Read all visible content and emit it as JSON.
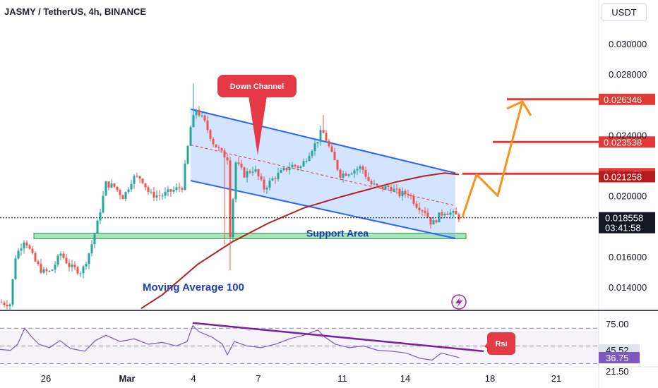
{
  "header": {
    "title": "JASMY / TetherUS, 4h, BINANCE",
    "currency_button": "USDT"
  },
  "chart_data": [
    {
      "type": "candlestick",
      "symbol": "JASMY / TetherUS",
      "interval": "4h",
      "exchange": "BINANCE",
      "ylim": [
        0.0128,
        0.0324
      ],
      "y_tick_labels": [
        "0.030000",
        "0.028000",
        "0.024000",
        "0.020000",
        "0.016000",
        "0.014000"
      ],
      "y_ticks": [
        0.03,
        0.028,
        0.024,
        0.02,
        0.016,
        0.014
      ],
      "x_tick_labels": [
        "26",
        "Mar",
        "4",
        "7",
        "11",
        "14",
        "18",
        "21"
      ],
      "up_color": "#26a69a",
      "down_color": "#ef5350",
      "price_path": [
        [
          0,
          0.013
        ],
        [
          14,
          0.0129
        ],
        [
          22,
          0.016
        ],
        [
          35,
          0.0172
        ],
        [
          48,
          0.0158
        ],
        [
          60,
          0.015
        ],
        [
          72,
          0.015
        ],
        [
          86,
          0.0162
        ],
        [
          100,
          0.0153
        ],
        [
          116,
          0.015
        ],
        [
          128,
          0.0165
        ],
        [
          138,
          0.0182
        ],
        [
          150,
          0.0208
        ],
        [
          162,
          0.0206
        ],
        [
          175,
          0.0199
        ],
        [
          188,
          0.0212
        ],
        [
          200,
          0.0212
        ],
        [
          212,
          0.0201
        ],
        [
          228,
          0.02
        ],
        [
          242,
          0.0203
        ],
        [
          258,
          0.0206
        ],
        [
          270,
          0.0245
        ],
        [
          278,
          0.0257
        ],
        [
          290,
          0.0248
        ],
        [
          302,
          0.0235
        ],
        [
          314,
          0.0228
        ],
        [
          322,
          0.0225
        ],
        [
          326,
          0.0175
        ],
        [
          334,
          0.0222
        ],
        [
          346,
          0.0214
        ],
        [
          360,
          0.0218
        ],
        [
          374,
          0.0205
        ],
        [
          388,
          0.0212
        ],
        [
          400,
          0.0216
        ],
        [
          412,
          0.022
        ],
        [
          426,
          0.0219
        ],
        [
          440,
          0.023
        ],
        [
          448,
          0.0235
        ],
        [
          456,
          0.0243
        ],
        [
          462,
          0.0237
        ],
        [
          470,
          0.0227
        ],
        [
          482,
          0.0214
        ],
        [
          496,
          0.0216
        ],
        [
          512,
          0.0219
        ],
        [
          524,
          0.0208
        ],
        [
          538,
          0.0205
        ],
        [
          552,
          0.0206
        ],
        [
          566,
          0.0201
        ],
        [
          578,
          0.0202
        ],
        [
          590,
          0.0194
        ],
        [
          602,
          0.019
        ],
        [
          612,
          0.0181
        ],
        [
          620,
          0.0186
        ],
        [
          630,
          0.019
        ],
        [
          642,
          0.0188
        ],
        [
          650,
          0.0186
        ]
      ],
      "moving_average": {
        "label": "Moving Average 100",
        "color": "#b22222",
        "points": [
          [
            200,
            0.0126
          ],
          [
            230,
            0.0135
          ],
          [
            280,
            0.0155
          ],
          [
            330,
            0.017
          ],
          [
            380,
            0.0182
          ],
          [
            430,
            0.0192
          ],
          [
            480,
            0.0199
          ],
          [
            520,
            0.0204
          ],
          [
            560,
            0.0209
          ],
          [
            600,
            0.0213
          ],
          [
            630,
            0.0215
          ],
          [
            650,
            0.0214
          ]
        ]
      },
      "down_channel": {
        "label": "Down Channel",
        "upper": [
          [
            270,
            0.0257
          ],
          [
            645,
            0.0215
          ]
        ],
        "lower": [
          [
            270,
            0.021
          ],
          [
            645,
            0.0172
          ]
        ]
      },
      "support_area": {
        "label": "Support Area",
        "range": [
          0.01718,
          0.01755
        ],
        "x_from": 48,
        "x_to": 660
      },
      "horizontal_levels": [
        {
          "price": 0.026346,
          "label": "0.026346",
          "color": "#e53935"
        },
        {
          "price": 0.023538,
          "label": "0.023538",
          "color": "#e53935"
        },
        {
          "price": 0.021457,
          "label": "0.021457",
          "color": "#e53935"
        },
        {
          "price": 0.021258,
          "label": "0.021258",
          "color": "#b71c1c"
        }
      ],
      "projected_path": [
        [
          655,
          0.0186
        ],
        [
          675,
          0.0214
        ],
        [
          705,
          0.02
        ],
        [
          740,
          0.0262
        ]
      ],
      "projection_color": "#f7931a",
      "last_price": {
        "price": 0.018558,
        "label": "0.018558",
        "countdown": "03:41:58"
      }
    },
    {
      "type": "line",
      "indicator": "RSI",
      "label": "Rsi",
      "ylim": [
        28,
        85
      ],
      "y_tick_labels": [
        "75.00",
        "45.52",
        "36.75",
        "21.50"
      ],
      "y_ticks": [
        75.0,
        45.52,
        36.75,
        21.5
      ],
      "bands": [
        70,
        50,
        30
      ],
      "value_color": "#7e57c2",
      "points": [
        [
          0,
          46
        ],
        [
          15,
          45
        ],
        [
          25,
          52
        ],
        [
          35,
          70
        ],
        [
          45,
          60
        ],
        [
          55,
          52
        ],
        [
          70,
          48
        ],
        [
          85,
          56
        ],
        [
          100,
          47
        ],
        [
          120,
          44
        ],
        [
          135,
          56
        ],
        [
          150,
          62
        ],
        [
          170,
          55
        ],
        [
          190,
          58
        ],
        [
          210,
          52
        ],
        [
          230,
          54
        ],
        [
          250,
          50
        ],
        [
          265,
          55
        ],
        [
          273,
          73
        ],
        [
          282,
          66
        ],
        [
          300,
          60
        ],
        [
          315,
          52
        ],
        [
          322,
          40
        ],
        [
          332,
          55
        ],
        [
          350,
          50
        ],
        [
          370,
          48
        ],
        [
          390,
          52
        ],
        [
          410,
          58
        ],
        [
          430,
          62
        ],
        [
          450,
          68
        ],
        [
          460,
          60
        ],
        [
          475,
          52
        ],
        [
          495,
          48
        ],
        [
          515,
          50
        ],
        [
          535,
          45
        ],
        [
          555,
          44
        ],
        [
          575,
          42
        ],
        [
          595,
          36
        ],
        [
          612,
          34
        ],
        [
          625,
          42
        ],
        [
          640,
          39
        ],
        [
          650,
          37
        ]
      ],
      "divergence_line": [
        [
          273,
          76
        ],
        [
          685,
          44
        ]
      ],
      "divergence_color": "#7b1fa2"
    }
  ]
}
